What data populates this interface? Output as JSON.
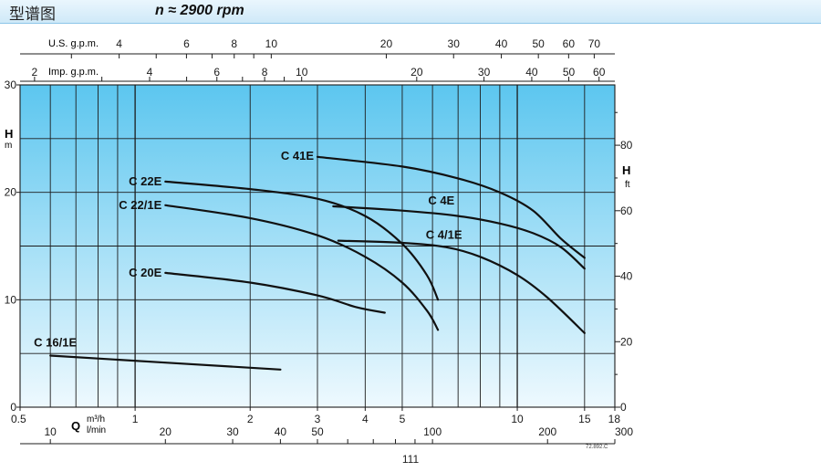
{
  "header": {
    "title": "型谱图",
    "speed": "n ≈ 2900 rpm"
  },
  "page_number": "111",
  "drawing_code": "72.892.C",
  "colors": {
    "header_background": "#d5ecf9",
    "plot_top": "#5cc6ef",
    "plot_bottom": "#eef9fe",
    "gridline": "#1c1c1c",
    "curve": "#111111"
  },
  "chart_data": {
    "type": "line",
    "scale": "log-x",
    "grid": true,
    "xlim": [
      0.5,
      18
    ],
    "ylim": [
      0,
      30
    ],
    "primary_x": {
      "unit": "m³/h",
      "tick_labels": [
        "0.5",
        "1",
        "2",
        "3",
        "4",
        "5",
        "10",
        "15",
        "18"
      ]
    },
    "secondary_x": {
      "label": "l/min",
      "tick_labels": [
        "10",
        "20",
        "30",
        "40",
        "50",
        "100",
        "200",
        "300"
      ]
    },
    "top_axis_us": {
      "label": "U.S. g.p.m.",
      "tick_labels": [
        "4",
        "6",
        "8",
        "10",
        "20",
        "30",
        "40",
        "50",
        "60",
        "70"
      ]
    },
    "top_axis_imp": {
      "label": "Imp. g.p.m.",
      "tick_labels": [
        "2",
        "4",
        "6",
        "8",
        "10",
        "20",
        "30",
        "40",
        "50",
        "60"
      ]
    },
    "y_left": {
      "label": "H",
      "unit": "m",
      "tick_labels": [
        "0",
        "10",
        "20",
        "30"
      ]
    },
    "y_right": {
      "label": "H",
      "unit": "ft",
      "tick_labels": [
        "0",
        "20",
        "40",
        "60",
        "80"
      ]
    },
    "xlabel": "Q",
    "series": [
      {
        "name": "C 16/1E",
        "x": [
          0.6,
          2.4
        ],
        "y": [
          4.8,
          3.5
        ]
      },
      {
        "name": "C 20E",
        "x": [
          1.2,
          2.0,
          3.0,
          3.8,
          4.5
        ],
        "y": [
          12.5,
          11.6,
          10.4,
          9.3,
          8.8
        ]
      },
      {
        "name": "C 22E",
        "x": [
          1.2,
          2.0,
          3.0,
          4.0,
          5.0,
          5.8,
          6.2
        ],
        "y": [
          21.0,
          20.3,
          19.4,
          17.8,
          15.2,
          12.3,
          10.0
        ]
      },
      {
        "name": "C 22/1E",
        "x": [
          1.2,
          2.0,
          3.0,
          4.0,
          5.0,
          5.8,
          6.2
        ],
        "y": [
          18.8,
          17.6,
          16.0,
          14.0,
          11.6,
          9.0,
          7.2
        ]
      },
      {
        "name": "C 41E",
        "x": [
          3.0,
          5.0,
          7.0,
          9.0,
          11.0,
          13.0,
          15.0
        ],
        "y": [
          23.3,
          22.4,
          21.3,
          20.0,
          18.3,
          15.7,
          13.9
        ]
      },
      {
        "name": "C 4E",
        "x": [
          3.3,
          5.0,
          7.0,
          9.0,
          11.0,
          13.0,
          15.0
        ],
        "y": [
          18.7,
          18.3,
          17.8,
          17.1,
          16.2,
          14.9,
          12.9
        ]
      },
      {
        "name": "C 4/1E",
        "x": [
          3.4,
          5.0,
          6.5,
          8.0,
          10.0,
          12.0,
          15.0
        ],
        "y": [
          15.5,
          15.3,
          14.9,
          14.0,
          12.3,
          10.2,
          6.9
        ]
      }
    ]
  }
}
